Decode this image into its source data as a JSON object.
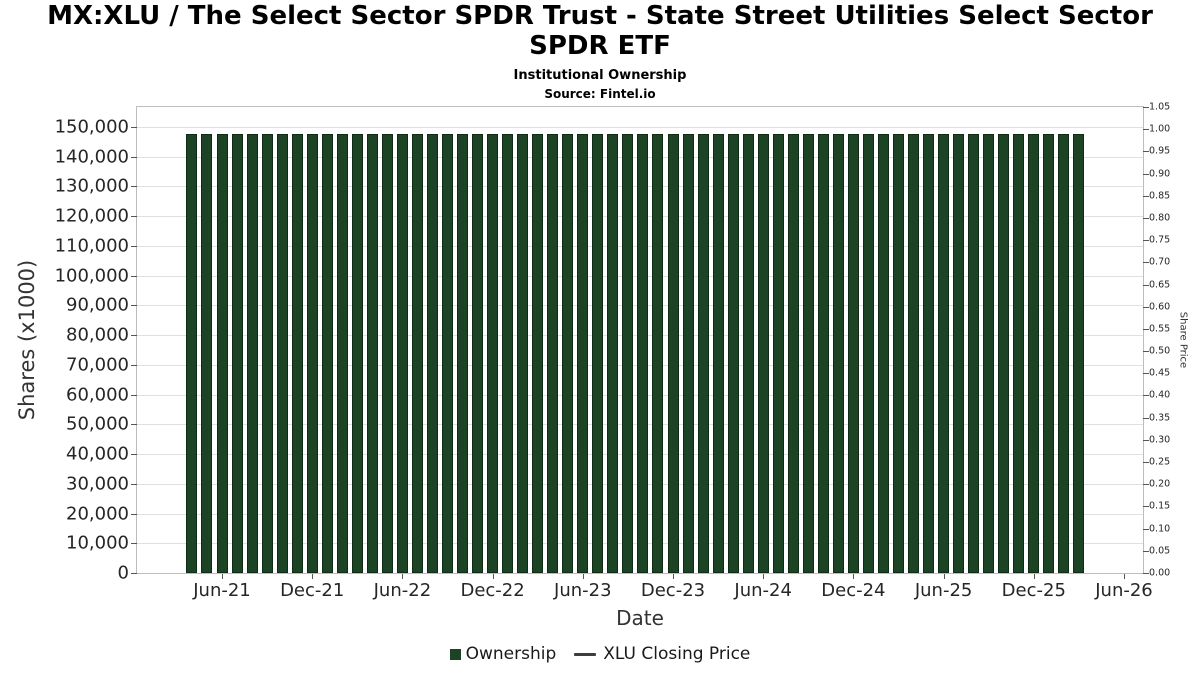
{
  "chart_data": {
    "type": "bar",
    "title": "MX:XLU / The Select Sector SPDR Trust - State Street Utilities Select Sector SPDR ETF",
    "subtitle": "Institutional Ownership",
    "source": "Source: Fintel.io",
    "xlabel": "Date",
    "ylabel_left": "Shares (x1000)",
    "ylabel_right": "Share Price",
    "legend_position": "bottom-center",
    "grid": true,
    "ylim_left": [
      0,
      156700
    ],
    "ylim_right": [
      0,
      1.05
    ],
    "y_left_tick_step": 10000,
    "y_right_tick_step": 0.05,
    "y_left_tick_labels": [
      "0",
      "10,000",
      "20,000",
      "30,000",
      "40,000",
      "50,000",
      "60,000",
      "70,000",
      "80,000",
      "90,000",
      "100,000",
      "110,000",
      "120,000",
      "130,000",
      "140,000",
      "150,000"
    ],
    "y_right_tick_labels": [
      "0.00",
      "0.05",
      "0.10",
      "0.15",
      "0.20",
      "0.25",
      "0.30",
      "0.35",
      "0.40",
      "0.45",
      "0.50",
      "0.55",
      "0.60",
      "0.65",
      "0.70",
      "0.75",
      "0.80",
      "0.85",
      "0.90",
      "0.95",
      "1.00",
      "1.05"
    ],
    "x_tick_labels": [
      "Jun-21",
      "Dec-21",
      "Jun-22",
      "Dec-22",
      "Jun-23",
      "Dec-23",
      "Jun-24",
      "Dec-24",
      "Jun-25",
      "Dec-25",
      "Jun-26"
    ],
    "categories": [
      "Apr-21",
      "May-21",
      "Jun-21",
      "Jul-21",
      "Aug-21",
      "Sep-21",
      "Oct-21",
      "Nov-21",
      "Dec-21",
      "Jan-22",
      "Feb-22",
      "Mar-22",
      "Apr-22",
      "May-22",
      "Jun-22",
      "Jul-22",
      "Aug-22",
      "Sep-22",
      "Oct-22",
      "Nov-22",
      "Dec-22",
      "Jan-23",
      "Feb-23",
      "Mar-23",
      "Apr-23",
      "May-23",
      "Jun-23",
      "Jul-23",
      "Aug-23",
      "Sep-23",
      "Oct-23",
      "Nov-23",
      "Dec-23",
      "Jan-24",
      "Feb-24",
      "Mar-24",
      "Apr-24",
      "May-24",
      "Jun-24",
      "Jul-24",
      "Aug-24",
      "Sep-24",
      "Oct-24",
      "Nov-24",
      "Dec-24",
      "Jan-25",
      "Feb-25",
      "Mar-25",
      "Apr-25",
      "May-25",
      "Jun-25",
      "Jul-25",
      "Aug-25",
      "Sep-25",
      "Oct-25",
      "Nov-25",
      "Dec-25",
      "Jan-26",
      "Feb-26",
      "Mar-26"
    ],
    "series": [
      {
        "name": "Ownership",
        "type": "bar",
        "values": [
          147500,
          147500,
          147500,
          147500,
          147500,
          147500,
          147500,
          147500,
          147500,
          147500,
          147500,
          147500,
          147500,
          147500,
          147500,
          147500,
          147500,
          147500,
          147500,
          147500,
          147500,
          147500,
          147500,
          147500,
          147500,
          147500,
          147500,
          147500,
          147500,
          147500,
          147500,
          147500,
          147500,
          147500,
          147500,
          147500,
          147500,
          147500,
          147500,
          147500,
          147500,
          147500,
          147500,
          147500,
          147500,
          147500,
          147500,
          147500,
          147500,
          147500,
          147500,
          147500,
          147500,
          147500,
          147500,
          147500,
          147500,
          147500,
          147500,
          147500
        ]
      },
      {
        "name": "XLU Closing Price",
        "type": "line",
        "values": []
      }
    ],
    "colors": {
      "bar": "#1c4424",
      "bar_edge": "#0e2c13",
      "price_line": "#3d3d3d",
      "grid": "#e0e0e0",
      "axis_text": "#262626"
    }
  }
}
